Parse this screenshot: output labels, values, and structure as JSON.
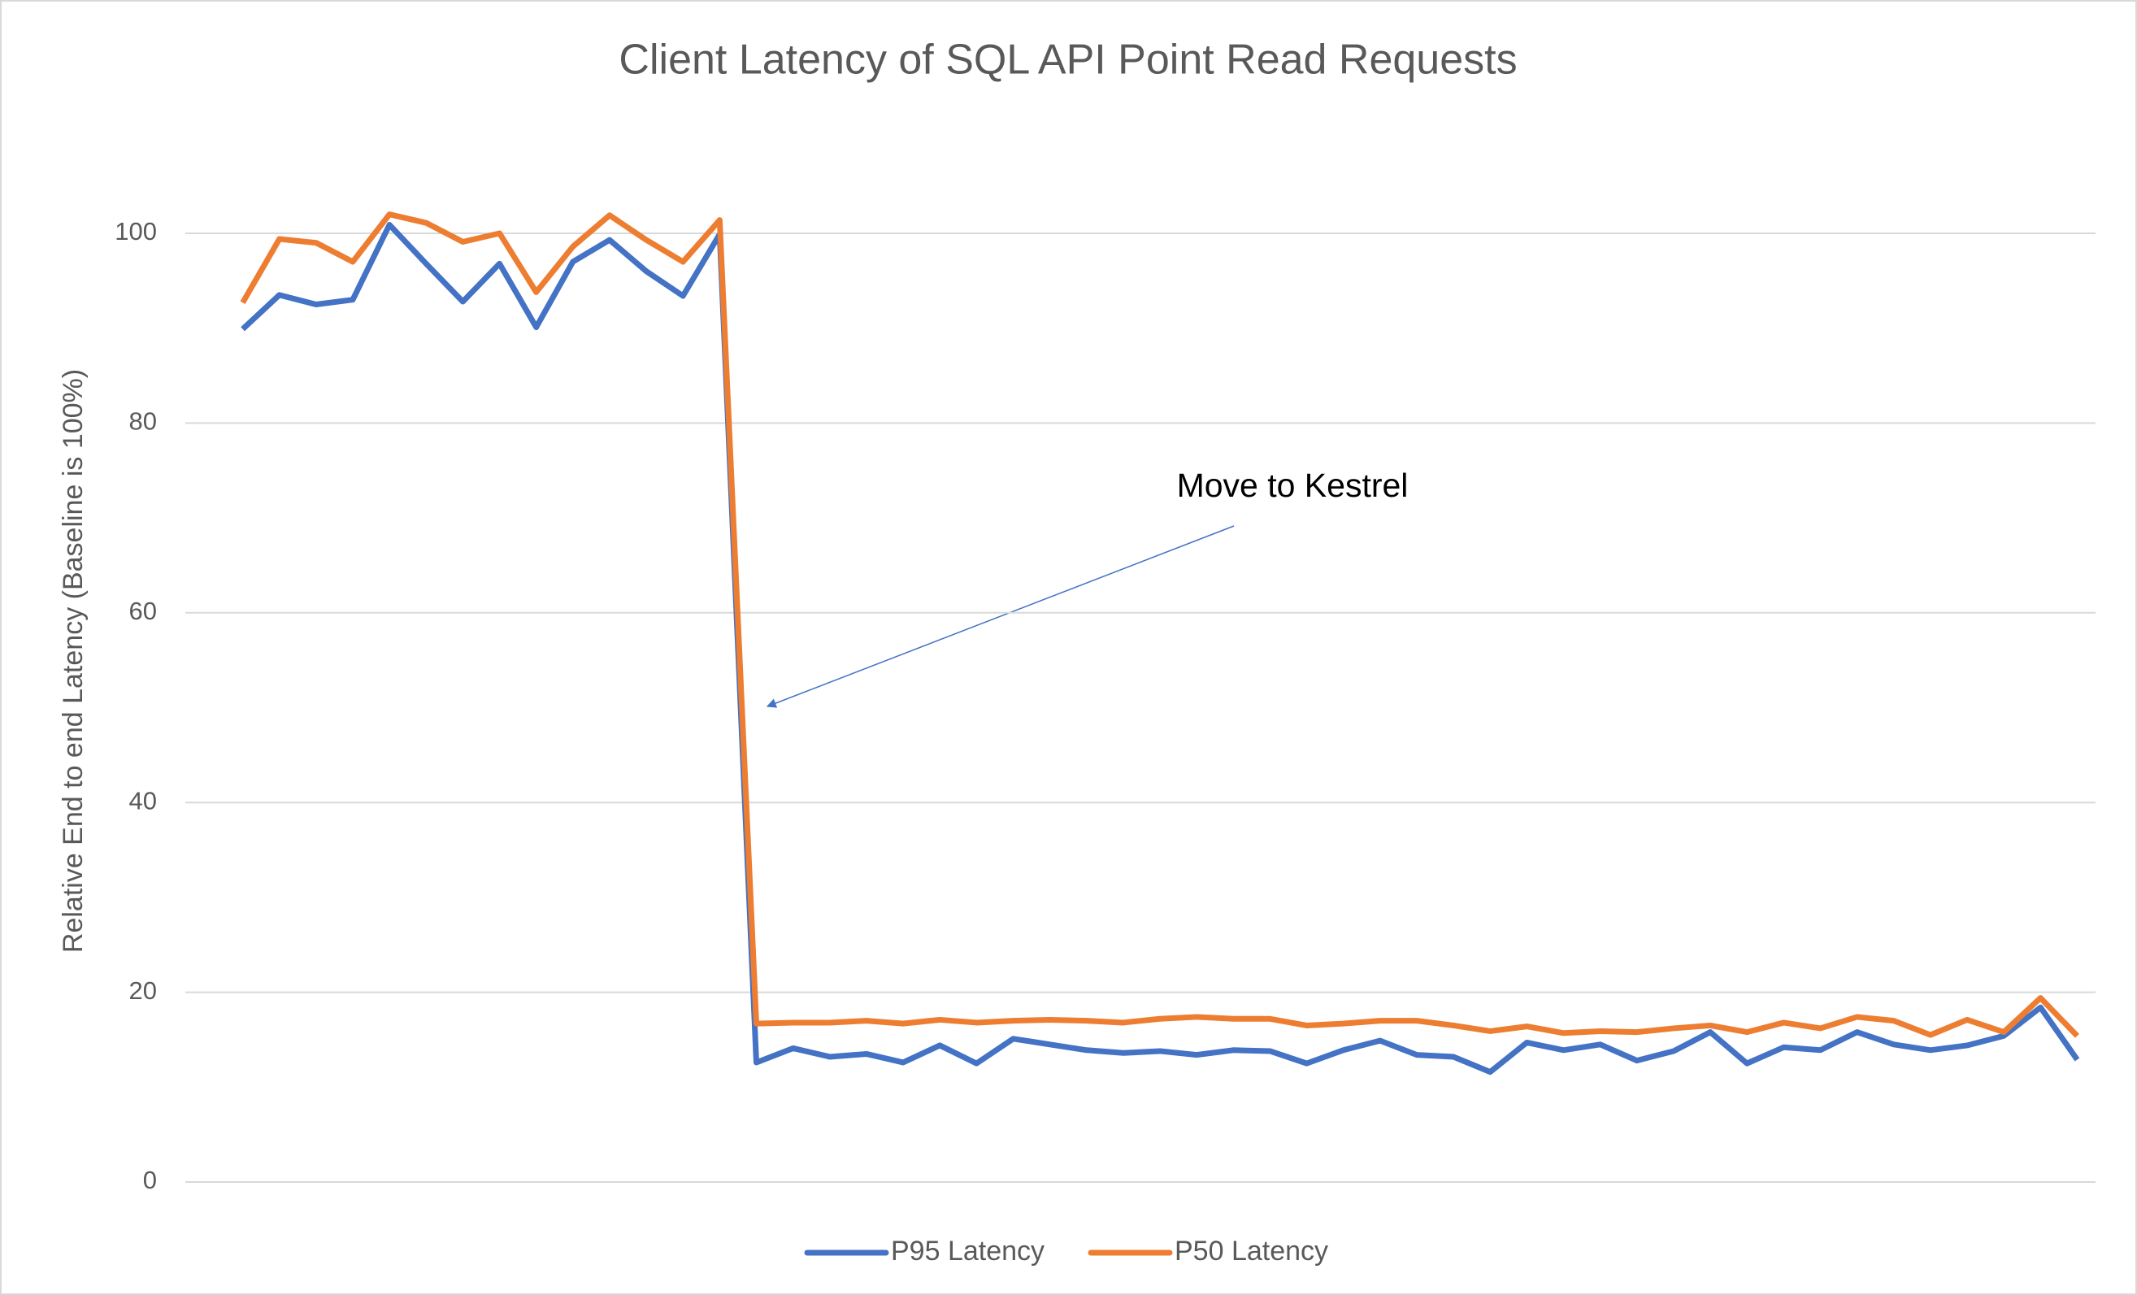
{
  "chart_data": {
    "type": "line",
    "title": "Client Latency of SQL API Point Read Requests",
    "y_label": "Relative End to end Latency (Baseline is 100%)",
    "annotations": [
      "Move to Kestrel"
    ],
    "categories": [
      null,
      null,
      null,
      null,
      null,
      null,
      null,
      null,
      null,
      null,
      null,
      null,
      null,
      null,
      null,
      null,
      null,
      null,
      null,
      null,
      null,
      null,
      null,
      null,
      null,
      null,
      null,
      null,
      null,
      null,
      null,
      null,
      null,
      null,
      null,
      null,
      null,
      null,
      null,
      null,
      null,
      null,
      null,
      null,
      null,
      null,
      null,
      null,
      null,
      null,
      null
    ],
    "series": [
      {
        "name": "P95 Latency",
        "color": "#4472c4",
        "values": [
          89.9,
          93.5,
          92.5,
          93,
          100.9,
          96.8,
          92.8,
          96.8,
          90.1,
          97,
          99.3,
          96,
          93.4,
          99.9,
          12.6,
          14.1,
          13.2,
          13.5,
          12.6,
          14.4,
          12.5,
          15.1,
          14.5,
          13.9,
          13.6,
          13.8,
          13.4,
          13.9,
          13.8,
          12.5,
          13.9,
          14.9,
          13.4,
          13.2,
          11.6,
          14.7,
          13.9,
          14.5,
          12.8,
          13.8,
          15.8,
          12.5,
          14.2,
          13.9,
          15.8,
          14.5,
          13.9,
          14.4,
          15.4,
          18.4,
          12.9
        ]
      },
      {
        "name": "P50 Latency",
        "color": "#ed7d31",
        "values": [
          92.7,
          99.4,
          99,
          97,
          102,
          101.1,
          99.1,
          100,
          93.8,
          98.6,
          101.9,
          99.3,
          97,
          101.4,
          16.7,
          16.8,
          16.8,
          17,
          16.7,
          17.1,
          16.8,
          17,
          17.1,
          17,
          16.8,
          17.2,
          17.4,
          17.2,
          17.2,
          16.5,
          16.7,
          17,
          17,
          16.5,
          15.9,
          16.4,
          15.7,
          15.9,
          15.8,
          16.2,
          16.5,
          15.8,
          16.8,
          16.2,
          17.4,
          17,
          15.5,
          17.1,
          15.8,
          19.4,
          15.4
        ]
      }
    ],
    "ylim": [
      0,
      100
    ],
    "yticks": [
      0,
      20,
      40,
      60,
      80,
      100
    ],
    "grid": true,
    "legend": "bottom"
  }
}
